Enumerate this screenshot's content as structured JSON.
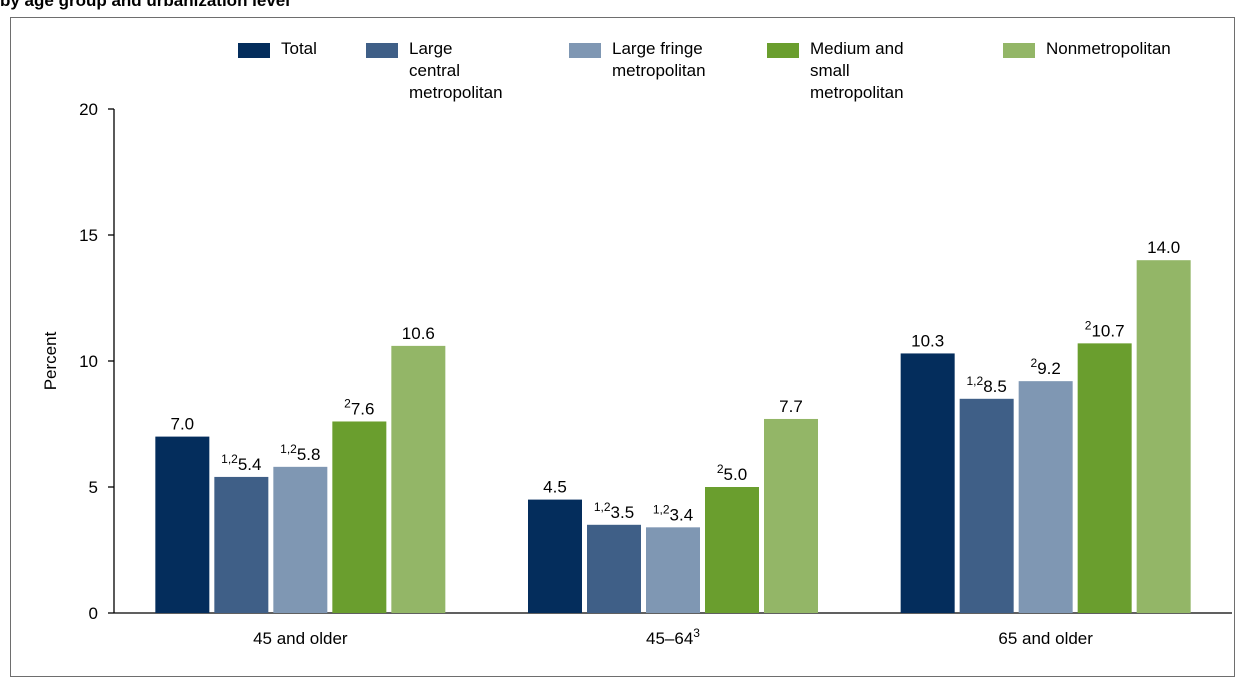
{
  "title": "by age group and urbanization level",
  "colors": {
    "Total": "#042d5c",
    "Large central metropolitan": "#3f5f87",
    "Large fringe metropolitan": "#7f97b3",
    "Medium and small metropolitan": "#6a9e2e",
    "Nonmetropolitan": "#93b667"
  },
  "chart_data": {
    "type": "bar",
    "title": "",
    "xlabel": "",
    "ylabel": "Percent",
    "ylim": [
      0,
      20
    ],
    "yticks": [
      0,
      5,
      10,
      15,
      20
    ],
    "grid": false,
    "legend_position": "top",
    "categories": [
      {
        "label": "45 and older",
        "sup": ""
      },
      {
        "label": "45–64",
        "sup": "3"
      },
      {
        "label": "65 and older",
        "sup": ""
      }
    ],
    "series": [
      {
        "name": "Total",
        "legend_label": "Total",
        "values": [
          7.0,
          4.5,
          10.3
        ],
        "labels": [
          "7.0",
          "4.5",
          "10.3"
        ],
        "sups": [
          "",
          "",
          ""
        ]
      },
      {
        "name": "Large central metropolitan",
        "legend_label": "Large central\nmetropolitan",
        "values": [
          5.4,
          3.5,
          8.5
        ],
        "labels": [
          "5.4",
          "3.5",
          "8.5"
        ],
        "sups": [
          "1,2",
          "1,2",
          "1,2"
        ]
      },
      {
        "name": "Large fringe metropolitan",
        "legend_label": "Large fringe\nmetropolitan",
        "values": [
          5.8,
          3.4,
          9.2
        ],
        "labels": [
          "5.8",
          "3.4",
          "9.2"
        ],
        "sups": [
          "1,2",
          "1,2",
          "2"
        ]
      },
      {
        "name": "Medium and small metropolitan",
        "legend_label": "Medium and small\nmetropolitan",
        "values": [
          7.6,
          5.0,
          10.7
        ],
        "labels": [
          "7.6",
          "5.0",
          "10.7"
        ],
        "sups": [
          "2",
          "2",
          "2"
        ]
      },
      {
        "name": "Nonmetropolitan",
        "legend_label": "Nonmetropolitan",
        "values": [
          10.6,
          7.7,
          14.0
        ],
        "labels": [
          "10.6",
          "7.7",
          "14.0"
        ],
        "sups": [
          "",
          "",
          ""
        ]
      }
    ]
  }
}
